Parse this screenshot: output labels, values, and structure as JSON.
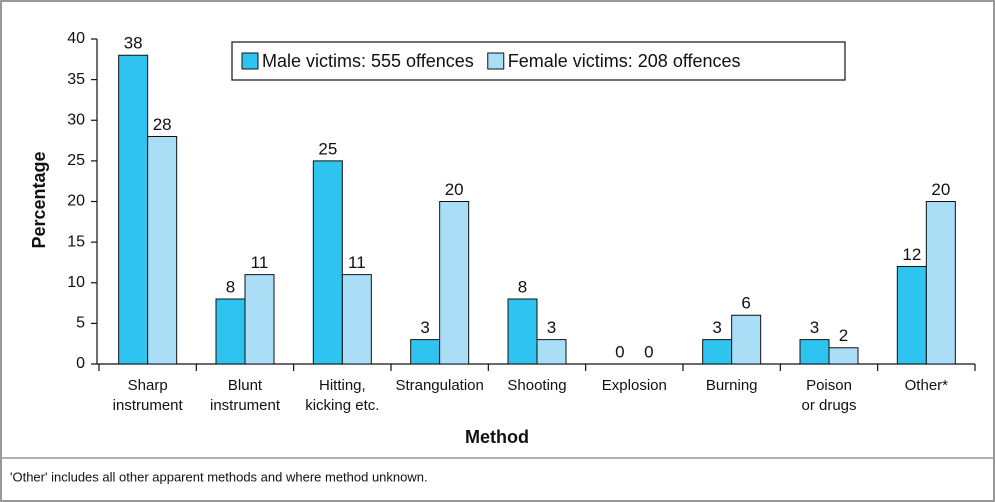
{
  "chart_data": {
    "type": "bar",
    "y_label": "Percentage",
    "x_label": "Method",
    "categories": [
      [
        "Sharp",
        "instrument"
      ],
      [
        "Blunt",
        "instrument"
      ],
      [
        "Hitting,",
        "kicking etc."
      ],
      [
        "Strangulation"
      ],
      [
        "Shooting"
      ],
      [
        "Explosion"
      ],
      [
        "Burning"
      ],
      [
        "Poison",
        "or drugs"
      ],
      [
        "Other*"
      ]
    ],
    "series": [
      {
        "name": "Male victims: 555 offences",
        "color": "#2ec4ef",
        "values": [
          38,
          8,
          25,
          3,
          8,
          0,
          3,
          3,
          12
        ]
      },
      {
        "name": "Female victims: 208 offences",
        "color": "#a9def6",
        "values": [
          28,
          11,
          11,
          20,
          3,
          0,
          6,
          2,
          20
        ]
      }
    ],
    "ylim": [
      0,
      40
    ],
    "yticks": [
      0,
      5,
      10,
      15,
      20,
      25,
      30,
      35,
      40
    ],
    "legend": "top",
    "footnote": "'Other' includes all other apparent methods and where method unknown."
  }
}
